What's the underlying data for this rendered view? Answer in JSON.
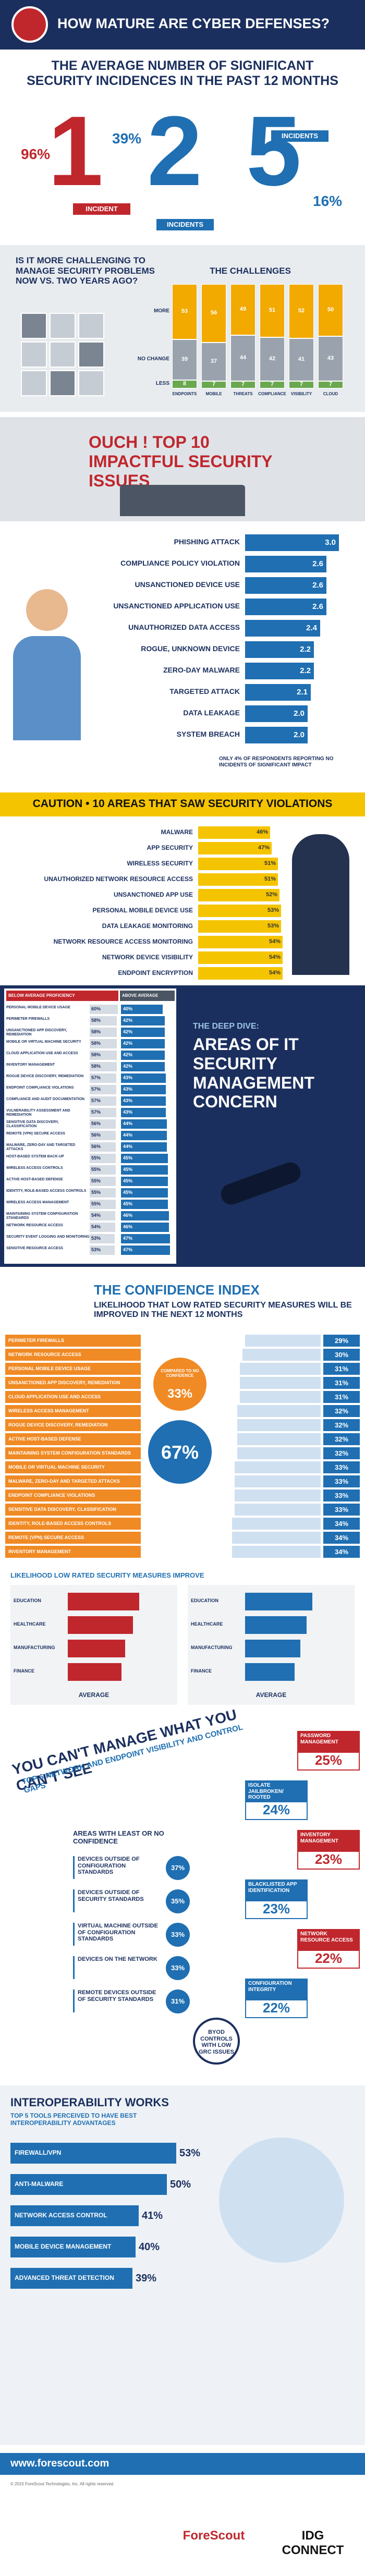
{
  "header": {
    "title": "HOW MATURE ARE CYBER DEFENSES?"
  },
  "incidents": {
    "title": "THE AVERAGE NUMBER OF SIGNIFICANT SECURITY INCIDENCES IN THE PAST 12 MONTHS",
    "items": [
      {
        "number": "1",
        "label": "INCIDENT",
        "percent": "96%"
      },
      {
        "number": "2",
        "label": "INCIDENTS",
        "percent": "39%"
      },
      {
        "number": "5",
        "label": "INCIDENTS",
        "percent": "16%"
      }
    ]
  },
  "challenges": {
    "question": "IS IT MORE CHALLENGING TO MANAGE SECURITY PROBLEMS NOW VS. TWO YEARS AGO?",
    "title": "THE CHALLENGES",
    "categories": [
      "ENDPOINTS",
      "MOBILE",
      "THREATS",
      "COMPLIANCE",
      "VISIBILITY",
      "CLOUD"
    ],
    "series": [
      {
        "name": "MORE",
        "color": "#f2a900",
        "values": [
          53,
          56,
          49,
          51,
          52,
          50
        ]
      },
      {
        "name": "NO CHANGE",
        "color": "#9aa3ad",
        "values": [
          39,
          37,
          44,
          42,
          41,
          43
        ]
      },
      {
        "name": "LESS",
        "color": "#6aa84f",
        "values": [
          8,
          7,
          7,
          7,
          7,
          7
        ]
      }
    ]
  },
  "impact": {
    "title": "OUCH ! TOP 10 IMPACTFUL SECURITY ISSUES",
    "items": [
      {
        "label": "PHISHING ATTACK",
        "value": 3.0,
        "value_label": "3.0"
      },
      {
        "label": "COMPLIANCE POLICY VIOLATION",
        "value": 2.6,
        "value_label": "2.6"
      },
      {
        "label": "UNSANCTIONED DEVICE USE",
        "value": 2.6,
        "value_label": "2.6"
      },
      {
        "label": "UNSANCTIONED APPLICATION USE",
        "value": 2.6,
        "value_label": "2.6"
      },
      {
        "label": "UNAUTHORIZED DATA ACCESS",
        "value": 2.4,
        "value_label": "2.4"
      },
      {
        "label": "ROGUE, UNKNOWN DEVICE",
        "value": 2.2,
        "value_label": "2.2"
      },
      {
        "label": "ZERO-DAY MALWARE",
        "value": 2.2,
        "value_label": "2.2"
      },
      {
        "label": "TARGETED ATTACK",
        "value": 2.1,
        "value_label": "2.1"
      },
      {
        "label": "DATA LEAKAGE",
        "value": 2.0,
        "value_label": "2.0"
      },
      {
        "label": "SYSTEM BREACH",
        "value": 2.0,
        "value_label": "2.0"
      }
    ],
    "note": "ONLY 4% OF RESPONDENTS REPORTING NO INCIDENTS OF SIGNIFICANT IMPACT"
  },
  "violations": {
    "title": "CAUTION • 10 AREAS THAT SAW SECURITY VIOLATIONS",
    "items": [
      {
        "label": "MALWARE",
        "value": 46,
        "value_label": "46%"
      },
      {
        "label": "APP SECURITY",
        "value": 47,
        "value_label": "47%"
      },
      {
        "label": "WIRELESS SECURITY",
        "value": 51,
        "value_label": "51%"
      },
      {
        "label": "UNAUTHORIZED NETWORK RESOURCE ACCESS",
        "value": 51,
        "value_label": "51%"
      },
      {
        "label": "UNSANCTIONED APP USE",
        "value": 52,
        "value_label": "52%"
      },
      {
        "label": "PERSONAL MOBILE DEVICE USE",
        "value": 53,
        "value_label": "53%"
      },
      {
        "label": "DATA LEAKAGE MONITORING",
        "value": 53,
        "value_label": "53%"
      },
      {
        "label": "NETWORK RESOURCE ACCESS MONITORING",
        "value": 54,
        "value_label": "54%"
      },
      {
        "label": "NETWORK DEVICE VISIBILITY",
        "value": 54,
        "value_label": "54%"
      },
      {
        "label": "ENDPOINT ENCRYPTION",
        "value": 54,
        "value_label": "54%"
      }
    ]
  },
  "deep_dive": {
    "kicker": "THE DEEP DIVE:",
    "title": "AREAS OF IT SECURITY MANAGEMENT CONCERN",
    "headers": [
      "BELOW AVERAGE PROFICIENCY",
      "ABOVE AVERAGE PROFICIENCY"
    ],
    "rows": [
      {
        "label": "PERSONAL MOBILE DEVICE USAGE",
        "below": 60,
        "below_label": "60%",
        "above": 40,
        "above_label": "40%"
      },
      {
        "label": "PERIMETER FIREWALLS",
        "below": 58,
        "below_label": "58%",
        "above": 42,
        "above_label": "42%"
      },
      {
        "label": "UNSANCTIONED APP DISCOVERY, REMEDIATION",
        "below": 58,
        "below_label": "58%",
        "above": 42,
        "above_label": "42%"
      },
      {
        "label": "MOBILE OR VIRTUAL MACHINE SECURITY",
        "below": 58,
        "below_label": "58%",
        "above": 42,
        "above_label": "42%"
      },
      {
        "label": "CLOUD APPLICATION USE AND ACCESS",
        "below": 58,
        "below_label": "58%",
        "above": 42,
        "above_label": "42%"
      },
      {
        "label": "INVENTORY MANAGEMENT",
        "below": 58,
        "below_label": "58%",
        "above": 42,
        "above_label": "42%"
      },
      {
        "label": "ROGUE DEVICE DISCOVERY, REMEDIATION",
        "below": 57,
        "below_label": "57%",
        "above": 43,
        "above_label": "43%"
      },
      {
        "label": "ENDPOINT COMPLIANCE VIOLATIONS",
        "below": 57,
        "below_label": "57%",
        "above": 43,
        "above_label": "43%"
      },
      {
        "label": "COMPLIANCE AND AUDIT DOCUMENTATION",
        "below": 57,
        "below_label": "57%",
        "above": 43,
        "above_label": "43%"
      },
      {
        "label": "VULNERABILITY ASSESSMENT AND REMEDIATION",
        "below": 57,
        "below_label": "57%",
        "above": 43,
        "above_label": "43%"
      },
      {
        "label": "SENSITIVE DATA DISCOVERY, CLASSIFICATION",
        "below": 56,
        "below_label": "56%",
        "above": 44,
        "above_label": "44%"
      },
      {
        "label": "REMOTE (VPN) SECURE ACCESS",
        "below": 56,
        "below_label": "56%",
        "above": 44,
        "above_label": "44%"
      },
      {
        "label": "MALWARE, ZERO-DAY AND TARGETED ATTACKS",
        "below": 56,
        "below_label": "56%",
        "above": 44,
        "above_label": "44%"
      },
      {
        "label": "HOST-BASED SYSTEM BACK-UP",
        "below": 55,
        "below_label": "55%",
        "above": 45,
        "above_label": "45%"
      },
      {
        "label": "WIRELESS ACCESS CONTROLS",
        "below": 55,
        "below_label": "55%",
        "above": 45,
        "above_label": "45%"
      },
      {
        "label": "ACTIVE HOST-BASED DEFENSE",
        "below": 55,
        "below_label": "55%",
        "above": 45,
        "above_label": "45%"
      },
      {
        "label": "IDENTITY, ROLE-BASED ACCESS CONTROLS",
        "below": 55,
        "below_label": "55%",
        "above": 45,
        "above_label": "45%"
      },
      {
        "label": "WIRELESS ACCESS MANAGEMENT",
        "below": 55,
        "below_label": "55%",
        "above": 45,
        "above_label": "45%"
      },
      {
        "label": "MAINTAINING SYSTEM CONFIGURATION STANDARDS",
        "below": 54,
        "below_label": "54%",
        "above": 46,
        "above_label": "46%"
      },
      {
        "label": "NETWORK RESOURCE ACCESS",
        "below": 54,
        "below_label": "54%",
        "above": 46,
        "above_label": "46%"
      },
      {
        "label": "SECURITY EVENT LOGGING AND MONITORING",
        "below": 53,
        "below_label": "53%",
        "above": 47,
        "above_label": "47%"
      },
      {
        "label": "SENSITIVE RESOURCE ACCESS",
        "below": 53,
        "below_label": "53%",
        "above": 47,
        "above_label": "47%"
      }
    ]
  },
  "confidence": {
    "title": "THE CONFIDENCE INDEX",
    "subtitle": "LIKELIHOOD THAT LOW RATED SECURITY MEASURES WILL BE IMPROVED IN THE NEXT 12 MONTHS",
    "circle": {
      "caption": "COMPARED TO NO CONFIDENCE",
      "low": "33%",
      "high": "67%"
    },
    "rows": [
      {
        "label": "PERIMETER FIREWALLS",
        "value": 29,
        "value_label": "29%"
      },
      {
        "label": "NETWORK RESOURCE ACCESS",
        "value": 30,
        "value_label": "30%"
      },
      {
        "label": "PERSONAL MOBILE DEVICE USAGE",
        "value": 31,
        "value_label": "31%"
      },
      {
        "label": "UNSANCTIONED APP DISCOVERY, REMEDIATION",
        "value": 31,
        "value_label": "31%"
      },
      {
        "label": "CLOUD APPLICATION USE AND ACCESS",
        "value": 31,
        "value_label": "31%"
      },
      {
        "label": "WIRELESS ACCESS MANAGEMENT",
        "value": 32,
        "value_label": "32%"
      },
      {
        "label": "ROGUE DEVICE DISCOVERY, REMEDIATION",
        "value": 32,
        "value_label": "32%"
      },
      {
        "label": "ACTIVE HOST-BASED DEFENSE",
        "value": 32,
        "value_label": "32%"
      },
      {
        "label": "MAINTAINING SYSTEM CONFIGURATION STANDARDS",
        "value": 32,
        "value_label": "32%"
      },
      {
        "label": "MOBILE OR VIRTUAL MACHINE SECURITY",
        "value": 33,
        "value_label": "33%"
      },
      {
        "label": "MALWARE, ZERO-DAY AND TARGETED ATTACKS",
        "value": 33,
        "value_label": "33%"
      },
      {
        "label": "ENDPOINT COMPLIANCE VIOLATIONS",
        "value": 33,
        "value_label": "33%"
      },
      {
        "label": "SENSITIVE DATA DISCOVERY, CLASSIFICATION",
        "value": 33,
        "value_label": "33%"
      },
      {
        "label": "IDENTITY, ROLE-BASED ACCESS CONTROLS",
        "value": 34,
        "value_label": "34%"
      },
      {
        "label": "REMOTE (VPN) SECURE ACCESS",
        "value": 34,
        "value_label": "34%"
      },
      {
        "label": "INVENTORY MANAGEMENT",
        "value": 34,
        "value_label": "34%"
      }
    ]
  },
  "improve": {
    "title": "LIKELIHOOD LOW RATED SECURITY MEASURES IMPROVE",
    "categories": [
      "EDUCATION",
      "HEALTHCARE",
      "MANUFACTURING",
      "FINANCE"
    ],
    "xlim": [
      0,
      50
    ],
    "panels": [
      {
        "color": "#c0272d",
        "caption": "AVERAGE",
        "values": [
          36,
          33,
          29,
          27
        ]
      },
      {
        "color": "#1f6fb2",
        "caption": "AVERAGE",
        "values": [
          34,
          31,
          28,
          25
        ]
      }
    ]
  },
  "gaps": {
    "title": "YOU CAN'T MANAGE WHAT YOU CAN'T SEE",
    "subtitle": "TOP 6 NETWORK AND ENDPOINT VISIBILITY AND CONTROL GAPS",
    "least_title": "AREAS WITH LEAST OR NO CONFIDENCE",
    "least": [
      {
        "label": "DEVICES OUTSIDE OF CONFIGURATION STANDARDS",
        "percent": "37%"
      },
      {
        "label": "DEVICES OUTSIDE OF SECURITY STANDARDS",
        "percent": "35%"
      },
      {
        "label": "VIRTUAL MACHINE OUTSIDE OF CONFIGURATION STANDARDS",
        "percent": "33%"
      },
      {
        "label": "DEVICES ON THE NETWORK",
        "percent": "33%"
      },
      {
        "label": "REMOTE DEVICES OUTSIDE OF SECURITY STANDARDS",
        "percent": "31%"
      }
    ],
    "items": [
      {
        "label": "PASSWORD MANAGEMENT",
        "percent": "25%"
      },
      {
        "label": "ISOLATE JAILBROKEN/ ROOTED",
        "percent": "24%"
      },
      {
        "label": "INVENTORY MANAGEMENT",
        "percent": "23%"
      },
      {
        "label": "BLACKLISTED APP IDENTIFICATION",
        "percent": "23%"
      },
      {
        "label": "NETWORK RESOURCE ACCESS",
        "percent": "22%"
      },
      {
        "label": "CONFIGURATION INTEGRITY",
        "percent": "22%"
      }
    ],
    "byod": "BYOD CONTROLS WITH LOW GRC ISSUES"
  },
  "interop": {
    "title": "INTEROPERABILITY WORKS",
    "subtitle": "TOP 5 TOOLS PERCEIVED TO HAVE BEST INTEROPERABILITY ADVANTAGES",
    "items": [
      {
        "label": "FIREWALL/VPN",
        "value": 53,
        "value_label": "53%"
      },
      {
        "label": "ANTI-MALWARE",
        "value": 50,
        "value_label": "50%"
      },
      {
        "label": "NETWORK ACCESS CONTROL",
        "value": 41,
        "value_label": "41%"
      },
      {
        "label": "MOBILE DEVICE MANAGEMENT",
        "value": 40,
        "value_label": "40%"
      },
      {
        "label": "ADVANCED THREAT DETECTION",
        "value": 39,
        "value_label": "39%"
      }
    ]
  },
  "footer": {
    "url": "www.forescout.com",
    "legal": "© 2015 ForeScout Technologies, Inc. All rights reserved.",
    "logos": [
      "ForeScout",
      "IDG CONNECT"
    ]
  }
}
